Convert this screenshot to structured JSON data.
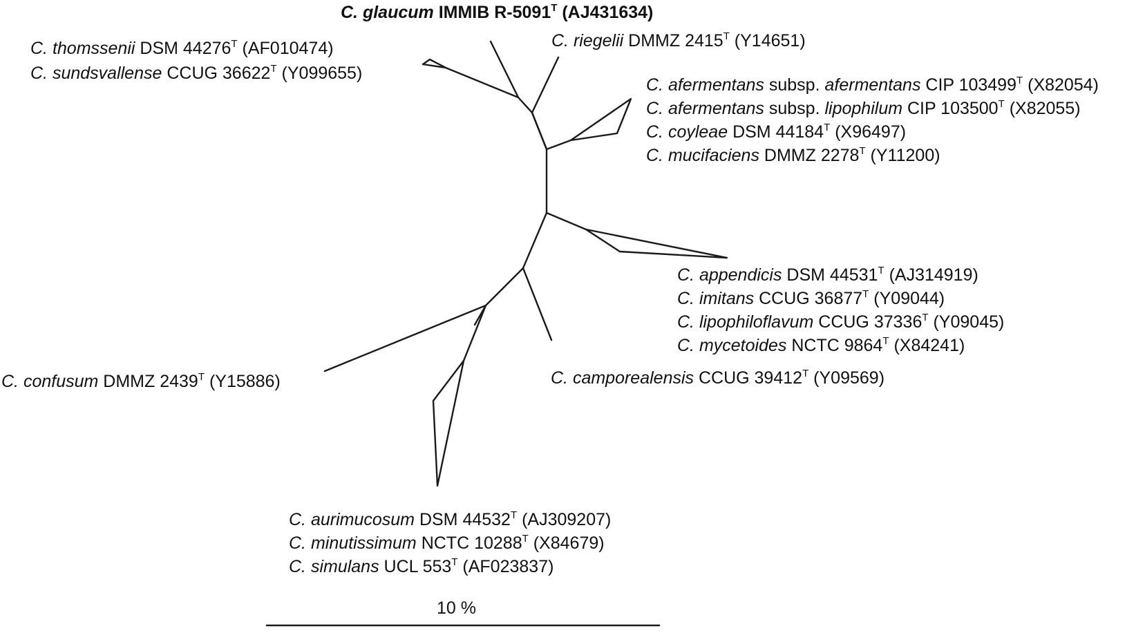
{
  "taxa": {
    "glaucum": {
      "genus": "C. glaucum",
      "strain": " IMMIB R-5091",
      "type_mark": "T",
      "accession": " (AJ431634)"
    },
    "thomssenii": {
      "genus": "C. thomssenii",
      "strain": " DSM 44276",
      "type_mark": "T",
      "accession": " (AF010474)"
    },
    "sundsvallense": {
      "genus": "C. sundsvallense",
      "strain": " CCUG 36622",
      "type_mark": "T",
      "accession": " (Y099655)"
    },
    "riegelii": {
      "genus": "C. riegelii",
      "strain": " DMMZ 2415",
      "type_mark": "T",
      "accession": " (Y14651)"
    },
    "afermentans": {
      "genus": "C. afermentans",
      "subsp": " subsp. ",
      "subsp_name": "afermentans",
      "strain": " CIP 103499",
      "type_mark": "T",
      "accession": " (X82054)"
    },
    "lipophilum": {
      "genus": "C. afermentans",
      "subsp": " subsp. ",
      "subsp_name": "lipophilum",
      "strain": "  CIP 103500",
      "type_mark": "T",
      "accession": " (X82055)"
    },
    "coyleae": {
      "genus": "C. coyleae",
      "strain": " DSM 44184",
      "type_mark": "T",
      "accession": " (X96497)"
    },
    "mucifaciens": {
      "genus": "C. mucifaciens",
      "strain": " DMMZ 2278",
      "type_mark": "T",
      "accession": " (Y11200)"
    },
    "appendicis": {
      "genus": "C. appendicis",
      "strain": " DSM 44531",
      "type_mark": "T",
      "accession": " (AJ314919)"
    },
    "imitans": {
      "genus": "C. imitans",
      "strain": " CCUG 36877",
      "type_mark": "T",
      "accession": " (Y09044)"
    },
    "lipophiloflavum": {
      "genus": "C. lipophiloflavum",
      "strain": " CCUG 37336",
      "type_mark": "T",
      "accession": " (Y09045)"
    },
    "mycetoides": {
      "genus": "C. mycetoides",
      "strain": " NCTC 9864",
      "type_mark": "T",
      "accession": " (X84241)"
    },
    "camporealensis": {
      "genus": "C. camporealensis",
      "strain": " CCUG 39412",
      "type_mark": "T",
      "accession": " (Y09569)"
    },
    "confusum": {
      "genus": "C. confusum",
      "strain": " DMMZ 2439",
      "type_mark": "T",
      "accession": " (Y15886)"
    },
    "aurimucosum": {
      "genus": "C. aurimucosum",
      "strain": " DSM 44532",
      "type_mark": "T",
      "accession": " (AJ309207)"
    },
    "minutissimum": {
      "genus": "C. minutissimum",
      "strain": " NCTC 10288",
      "type_mark": "T",
      "accession": " (X84679)"
    },
    "simulans": {
      "genus": "C. simulans",
      "strain": " UCL 553",
      "type_mark": "T",
      "accession": " (AF023837)"
    }
  },
  "scale": {
    "label": "10 %"
  },
  "colors": {
    "ink": "#1a1a1a",
    "background": "#ffffff"
  }
}
